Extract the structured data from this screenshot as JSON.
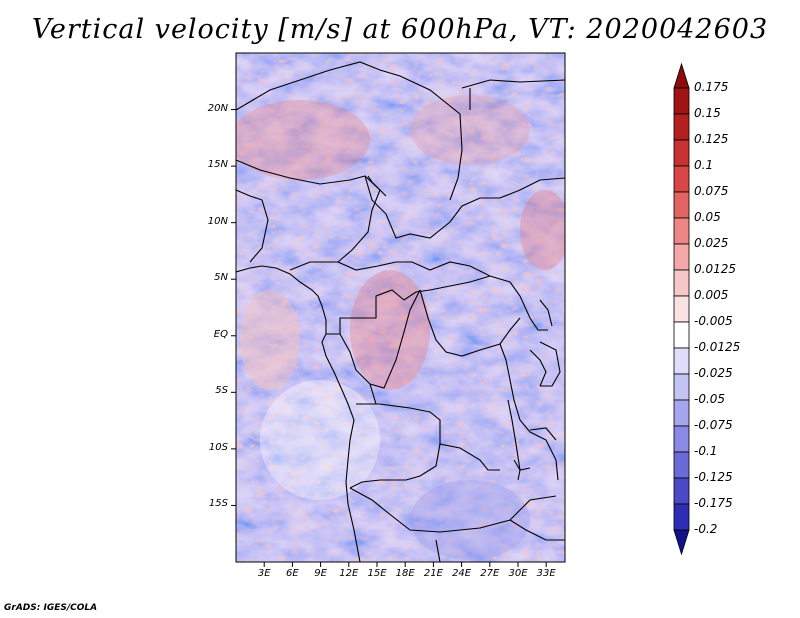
{
  "title": "Vertical velocity [m/s] at 600hPa, VT: 2020042603",
  "credit": "GrADS: IGES/COLA",
  "map": {
    "lon_range": [
      0,
      35
    ],
    "lat_range": [
      -20,
      25
    ],
    "lat_ticks": [
      {
        "value": 20,
        "label": "20N"
      },
      {
        "value": 15,
        "label": "15N"
      },
      {
        "value": 10,
        "label": "10N"
      },
      {
        "value": 5,
        "label": "5N"
      },
      {
        "value": 0,
        "label": "EQ"
      },
      {
        "value": -5,
        "label": "5S"
      },
      {
        "value": -10,
        "label": "10S"
      },
      {
        "value": -15,
        "label": "15S"
      }
    ],
    "lon_ticks": [
      {
        "value": 3,
        "label": "3E"
      },
      {
        "value": 6,
        "label": "6E"
      },
      {
        "value": 9,
        "label": "9E"
      },
      {
        "value": 12,
        "label": "12E"
      },
      {
        "value": 15,
        "label": "15E"
      },
      {
        "value": 18,
        "label": "18E"
      },
      {
        "value": 21,
        "label": "21E"
      },
      {
        "value": 24,
        "label": "24E"
      },
      {
        "value": 27,
        "label": "27E"
      },
      {
        "value": 30,
        "label": "30E"
      },
      {
        "value": 33,
        "label": "33E"
      }
    ]
  },
  "colorbar": {
    "levels": [
      {
        "label": "0.175",
        "color": "#a01414"
      },
      {
        "label": "0.15",
        "color": "#b42020"
      },
      {
        "label": "0.125",
        "color": "#c83232"
      },
      {
        "label": "0.1",
        "color": "#d84646"
      },
      {
        "label": "0.075",
        "color": "#e46464"
      },
      {
        "label": "0.05",
        "color": "#ee8686"
      },
      {
        "label": "0.025",
        "color": "#f4a8a8"
      },
      {
        "label": "0.0125",
        "color": "#f8c8c8"
      },
      {
        "label": "0.005",
        "color": "#fbe2e2"
      },
      {
        "label": "-0.005",
        "color": "#ffffff"
      },
      {
        "label": "-0.0125",
        "color": "#dedefa"
      },
      {
        "label": "-0.025",
        "color": "#c4c4f4"
      },
      {
        "label": "-0.05",
        "color": "#a6a6ee"
      },
      {
        "label": "-0.075",
        "color": "#8a8ae6"
      },
      {
        "label": "-0.1",
        "color": "#6a6ad8"
      },
      {
        "label": "-0.125",
        "color": "#4a4ac8"
      },
      {
        "label": "-0.175",
        "color": "#2e2eb4"
      },
      {
        "label": "-0.2",
        "color": "#1a1a9c"
      }
    ],
    "top_color": "#8c0c0c",
    "bottom_color": "#12128a"
  }
}
